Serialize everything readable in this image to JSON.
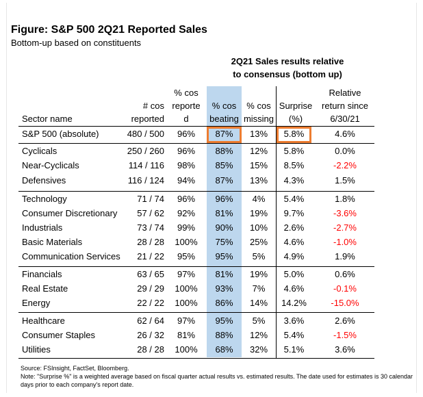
{
  "title": "Figure: S&P 500 2Q21 Reported Sales",
  "subtitle": "Bottom-up based on constituents",
  "group_header": [
    "2Q21 Sales results relative",
    "to consensus (bottom up)"
  ],
  "columns": {
    "sector": "Sector name",
    "reported": [
      "# cos",
      "reported"
    ],
    "pct_reported": [
      "% cos",
      "reporte",
      "d"
    ],
    "beating": [
      "% cos",
      "beating"
    ],
    "missing": [
      "% cos",
      "missing"
    ],
    "surprise": [
      "Surprise",
      "(%)"
    ],
    "relative": [
      "Relative",
      "return since",
      "6/30/21"
    ]
  },
  "rows": [
    {
      "sector": "S&P 500 (absolute)",
      "reported": "480 / 500",
      "pct_reported": "96%",
      "beating": "87%",
      "missing": "13%",
      "surprise": "5.8%",
      "relative": "4.6%"
    },
    {
      "sector": "Cyclicals",
      "reported": "250 / 260",
      "pct_reported": "96%",
      "beating": "88%",
      "missing": "12%",
      "surprise": "5.8%",
      "relative": "0.0%"
    },
    {
      "sector": "Near-Cyclicals",
      "reported": "114 / 116",
      "pct_reported": "98%",
      "beating": "85%",
      "missing": "15%",
      "surprise": "8.5%",
      "relative": "-2.2%"
    },
    {
      "sector": "Defensives",
      "reported": "116 / 124",
      "pct_reported": "94%",
      "beating": "87%",
      "missing": "13%",
      "surprise": "4.3%",
      "relative": "1.5%"
    },
    {
      "sector": "Technology",
      "reported": "71 / 74",
      "pct_reported": "96%",
      "beating": "96%",
      "missing": "4%",
      "surprise": "5.4%",
      "relative": "1.8%"
    },
    {
      "sector": "Consumer Discretionary",
      "reported": "57 / 62",
      "pct_reported": "92%",
      "beating": "81%",
      "missing": "19%",
      "surprise": "9.7%",
      "relative": "-3.6%"
    },
    {
      "sector": "Industrials",
      "reported": "73 / 74",
      "pct_reported": "99%",
      "beating": "90%",
      "missing": "10%",
      "surprise": "2.6%",
      "relative": "-2.7%"
    },
    {
      "sector": "Basic Materials",
      "reported": "28 / 28",
      "pct_reported": "100%",
      "beating": "75%",
      "missing": "25%",
      "surprise": "4.6%",
      "relative": "-1.0%"
    },
    {
      "sector": "Communication Services",
      "reported": "21 / 22",
      "pct_reported": "95%",
      "beating": "95%",
      "missing": "5%",
      "surprise": "4.9%",
      "relative": "1.9%"
    },
    {
      "sector": "Financials",
      "reported": "63 / 65",
      "pct_reported": "97%",
      "beating": "81%",
      "missing": "19%",
      "surprise": "5.0%",
      "relative": "0.6%"
    },
    {
      "sector": "Real Estate",
      "reported": "29 / 29",
      "pct_reported": "100%",
      "beating": "93%",
      "missing": "7%",
      "surprise": "4.6%",
      "relative": "-0.1%"
    },
    {
      "sector": "Energy",
      "reported": "22 / 22",
      "pct_reported": "100%",
      "beating": "86%",
      "missing": "14%",
      "surprise": "14.2%",
      "relative": "-15.0%"
    },
    {
      "sector": "Healthcare",
      "reported": "62 / 64",
      "pct_reported": "97%",
      "beating": "95%",
      "missing": "5%",
      "surprise": "3.6%",
      "relative": "2.6%"
    },
    {
      "sector": "Consumer Staples",
      "reported": "26 / 32",
      "pct_reported": "81%",
      "beating": "88%",
      "missing": "12%",
      "surprise": "5.4%",
      "relative": "-1.5%"
    },
    {
      "sector": "Utilities",
      "reported": "28 / 28",
      "pct_reported": "100%",
      "beating": "68%",
      "missing": "32%",
      "surprise": "5.1%",
      "relative": "3.6%"
    }
  ],
  "colors": {
    "highlight_column": "#bdd7ee",
    "callout_border": "#ed7d31",
    "negative_text": "#ff0000"
  },
  "notes": {
    "source": "Source: FSInsight, FactSet, Bloomberg.",
    "note_line1": "Note: \"Surprise %\" is a weighted average based on fiscal quarter actual results vs. estimated results.  The date used for estimates is 30 calendar",
    "note_line2": "days prior to each company's report date."
  }
}
